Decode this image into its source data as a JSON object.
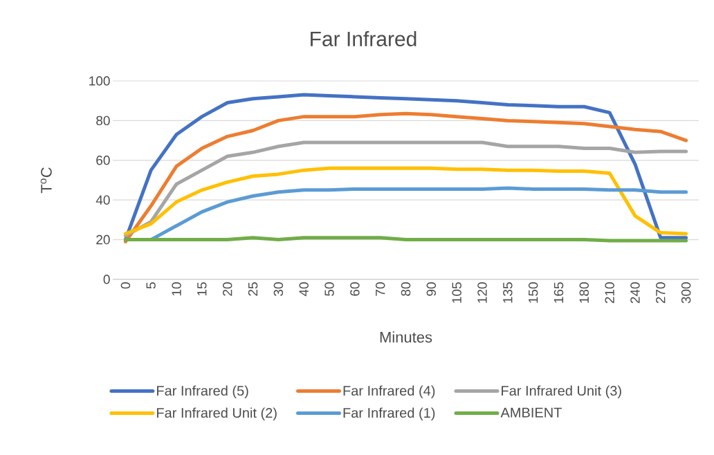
{
  "chart_data": {
    "type": "line",
    "title": "Far Infrared",
    "xlabel": "Minutes",
    "ylabel": "T$^{o}$C",
    "categories": [
      "0",
      "5",
      "10",
      "15",
      "20",
      "25",
      "30",
      "40",
      "50",
      "60",
      "70",
      "80",
      "90",
      "105",
      "120",
      "135",
      "150",
      "165",
      "180",
      "210",
      "240",
      "270",
      "300"
    ],
    "ylim": [
      0,
      100
    ],
    "yticks": [
      0,
      20,
      40,
      60,
      80,
      100
    ],
    "grid": "y",
    "legend": "bottom",
    "series": [
      {
        "name": "Far Infrared (5)",
        "color": "#4472c4",
        "values": [
          20,
          55,
          73,
          82,
          89,
          91,
          92,
          93,
          92.5,
          92,
          91.5,
          91,
          90.5,
          90,
          89,
          88,
          87.5,
          87,
          87,
          84,
          58,
          21,
          21
        ]
      },
      {
        "name": "Far Infrared (4)",
        "color": "#ed7d31",
        "values": [
          19,
          37,
          57,
          66,
          72,
          75,
          80,
          82,
          82,
          82,
          83,
          83.5,
          83,
          82,
          81,
          80,
          79.5,
          79,
          78.5,
          77,
          75.5,
          74.5,
          70
        ]
      },
      {
        "name": "Far Infrared Unit (3)",
        "color": "#a5a5a5",
        "values": [
          22,
          29,
          48,
          55,
          62,
          64,
          67,
          69,
          69,
          69,
          69,
          69,
          69,
          69,
          69,
          67,
          67,
          67,
          66,
          66,
          64,
          64.5,
          64.5
        ]
      },
      {
        "name": "Far Infrared Unit (2)",
        "color": "#ffc000",
        "values": [
          23,
          28,
          39,
          45,
          49,
          52,
          53,
          55,
          56,
          56,
          56,
          56,
          56,
          55.5,
          55.5,
          55,
          55,
          54.5,
          54.5,
          53.5,
          32,
          23.5,
          23
        ]
      },
      {
        "name": "Far Infrared (1)",
        "color": "#5b9bd5",
        "values": [
          20,
          20,
          27,
          34,
          39,
          42,
          44,
          45,
          45,
          45.5,
          45.5,
          45.5,
          45.5,
          45.5,
          45.5,
          46,
          45.5,
          45.5,
          45.5,
          45,
          45,
          44,
          44
        ]
      },
      {
        "name": "AMBIENT",
        "color": "#70ad47",
        "values": [
          20,
          20,
          20,
          20,
          20,
          21,
          20,
          21,
          21,
          21,
          21,
          20,
          20,
          20,
          20,
          20,
          20,
          20,
          20,
          19.5,
          19.5,
          19.5,
          19.5
        ]
      }
    ]
  }
}
